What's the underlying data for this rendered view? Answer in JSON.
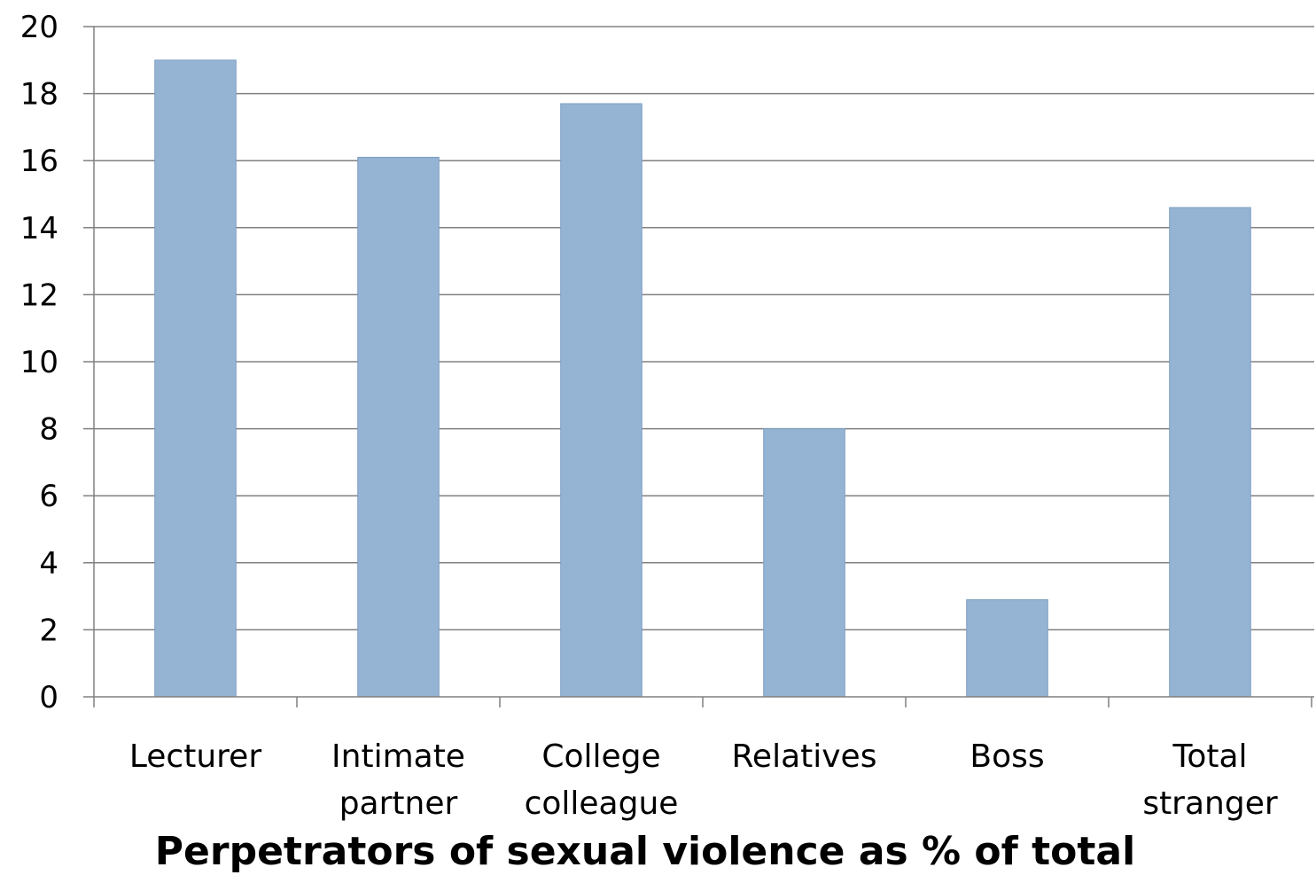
{
  "chart_data": {
    "type": "bar",
    "title": "Perpetrators of sexual violence as % of total",
    "categories": [
      [
        "Lecturer"
      ],
      [
        "Intimate",
        "partner"
      ],
      [
        "College",
        "colleague"
      ],
      [
        "Relatives"
      ],
      [
        "Boss"
      ],
      [
        "Total",
        "stranger"
      ]
    ],
    "values": [
      19,
      16.1,
      17.7,
      8,
      2.9,
      14.6
    ],
    "ylim": [
      0,
      20
    ],
    "yticks": [
      0,
      2,
      4,
      6,
      8,
      10,
      12,
      14,
      16,
      18,
      20
    ],
    "grid": true,
    "legend": "none",
    "colors": {
      "bar": "#95b3d3",
      "bar_stroke": "#7f9fc2",
      "grid": "#808080",
      "axis": "#808080"
    }
  }
}
